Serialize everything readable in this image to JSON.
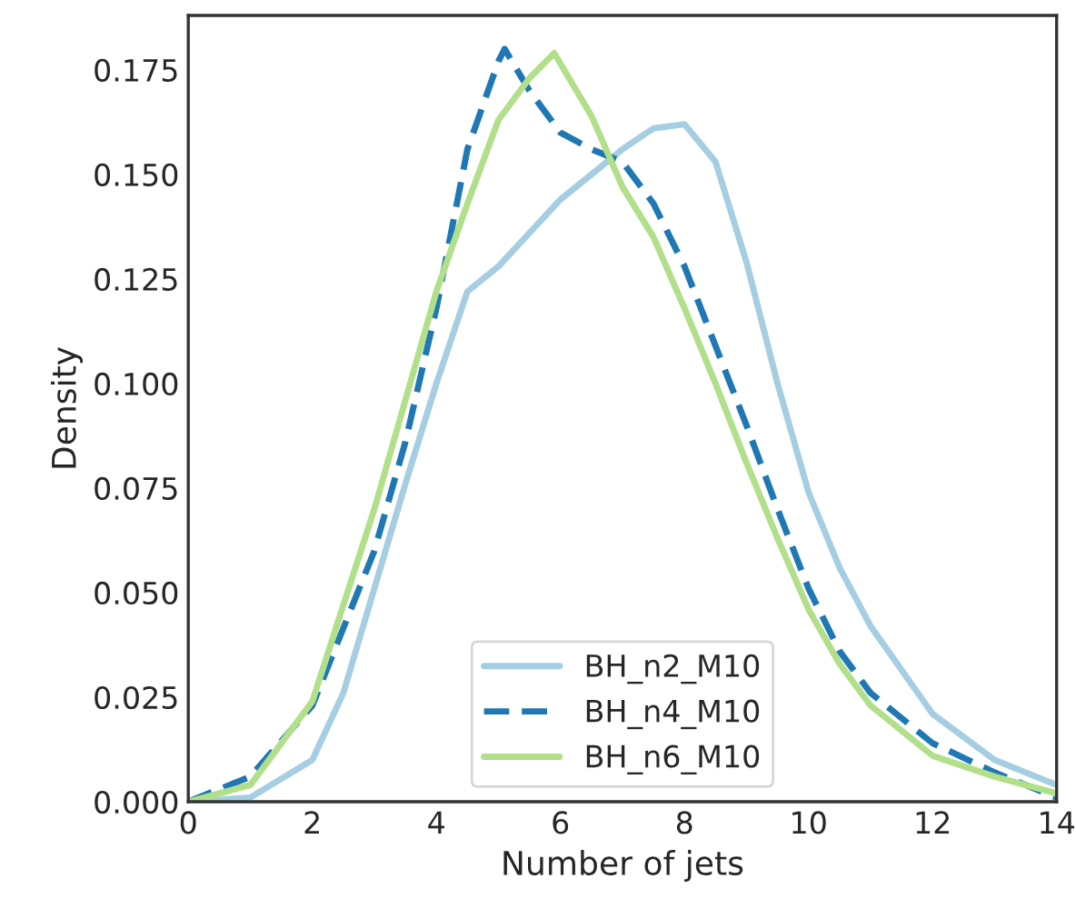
{
  "chart_data": {
    "type": "line",
    "xlabel": "Number of jets",
    "ylabel": "Density",
    "xlim": [
      0,
      14
    ],
    "xticks": [
      0,
      2,
      4,
      6,
      8,
      10,
      12,
      14
    ],
    "ylim": [
      0,
      0.188
    ],
    "yticks": [
      {
        "value": 0,
        "label": "0.000"
      },
      {
        "value": 0.025,
        "label": "0.025"
      },
      {
        "value": 0.05,
        "label": "0.050"
      },
      {
        "value": 0.075,
        "label": "0.075"
      },
      {
        "value": 0.1,
        "label": "0.100"
      },
      {
        "value": 0.125,
        "label": "0.125"
      },
      {
        "value": 0.15,
        "label": "0.150"
      },
      {
        "value": 0.175,
        "label": "0.175"
      }
    ],
    "grid": false,
    "legend": "bottom",
    "series": [
      {
        "name": "BH_n2_M10",
        "color": "#a6cee3",
        "line_style": "solid",
        "x": [
          0,
          1,
          2,
          2.5,
          3,
          3.5,
          4,
          4.5,
          5,
          6,
          7,
          7.5,
          8,
          8.5,
          9,
          9.5,
          10,
          10.5,
          11,
          12,
          13,
          14
        ],
        "values": [
          0,
          0.001,
          0.01,
          0.026,
          0.051,
          0.076,
          0.1,
          0.122,
          0.128,
          0.144,
          0.156,
          0.161,
          0.162,
          0.153,
          0.129,
          0.1,
          0.074,
          0.056,
          0.042,
          0.021,
          0.01,
          0.004
        ]
      },
      {
        "name": "BH_n4_M10",
        "color": "#1f78b4",
        "line_style": "dashed",
        "x": [
          0,
          1,
          2,
          3,
          3.5,
          4,
          4.5,
          5,
          5.1,
          5.5,
          6,
          6.5,
          7,
          7.5,
          8,
          8.5,
          9,
          9.5,
          10,
          10.5,
          11,
          12,
          13,
          14
        ],
        "values": [
          0,
          0.006,
          0.023,
          0.06,
          0.086,
          0.118,
          0.156,
          0.177,
          0.18,
          0.17,
          0.16,
          0.156,
          0.153,
          0.143,
          0.128,
          0.109,
          0.09,
          0.07,
          0.051,
          0.036,
          0.026,
          0.014,
          0.007,
          0.001
        ]
      },
      {
        "name": "BH_n6_M10",
        "color": "#b2df8a",
        "line_style": "solid",
        "x": [
          0,
          1,
          2,
          3,
          3.5,
          4,
          4.5,
          5,
          5.5,
          5.9,
          6.5,
          7,
          7.5,
          8,
          8.5,
          9,
          9.5,
          10,
          10.5,
          11,
          12,
          13,
          14
        ],
        "values": [
          0,
          0.004,
          0.024,
          0.07,
          0.096,
          0.122,
          0.143,
          0.163,
          0.173,
          0.179,
          0.164,
          0.147,
          0.135,
          0.118,
          0.1,
          0.081,
          0.063,
          0.046,
          0.033,
          0.023,
          0.011,
          0.006,
          0.002
        ]
      }
    ]
  }
}
